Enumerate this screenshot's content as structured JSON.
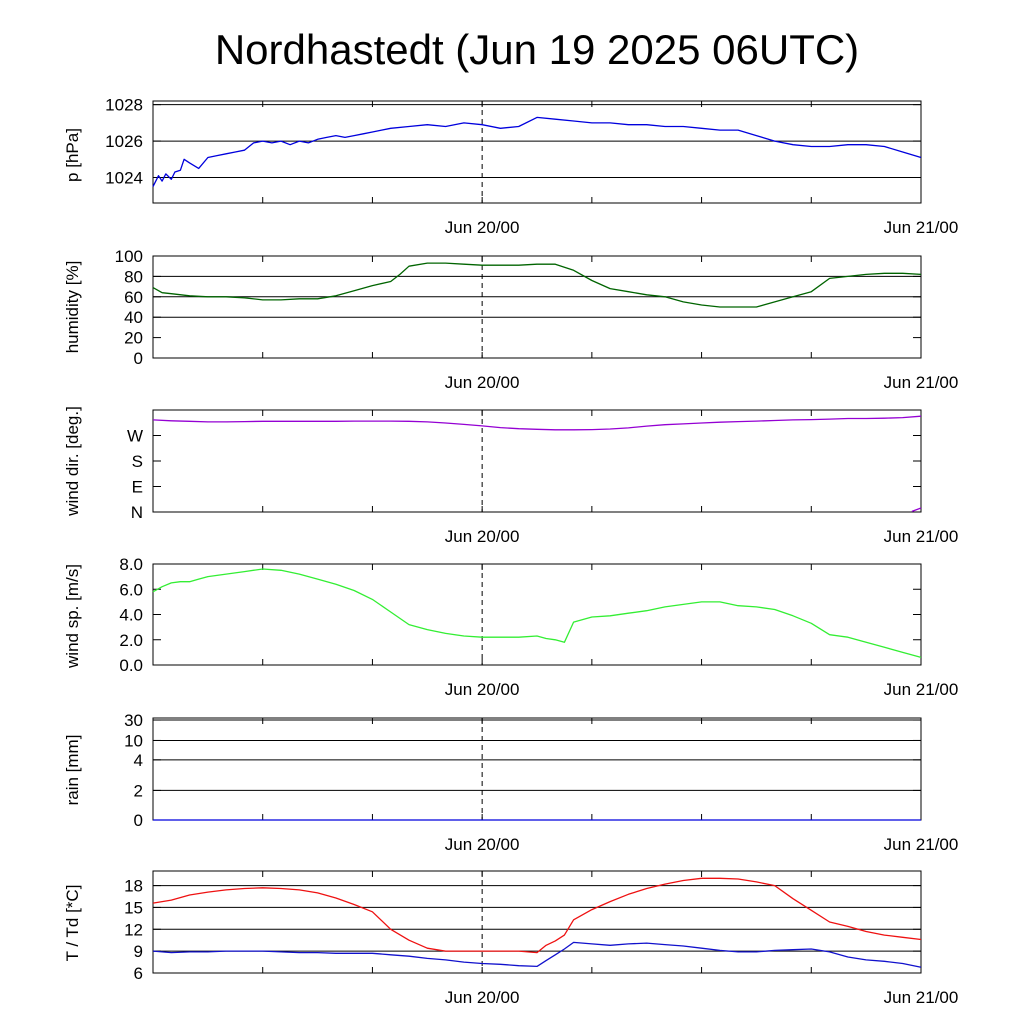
{
  "title": "Nordhastedt (Jun 19 2025 06UTC)",
  "colors": {
    "pressure": "#0000dd",
    "humidity": "#006400",
    "wind_dir": "#9400d3",
    "wind_speed": "#33ee33",
    "rain": "#0000dd",
    "temperature": "#ee1111",
    "dewpoint": "#1111cc"
  },
  "chart_data": [
    {
      "type": "line",
      "ylabel": "p [hPa]",
      "x_ticklabels": [
        "Jun 20/00",
        "Jun 21/00"
      ],
      "x_range_hours": [
        0,
        42
      ],
      "ylim": [
        1022.6,
        1028.2
      ],
      "yticks": [
        1024,
        1026,
        1028
      ],
      "ytick_labels": [
        "1024",
        "1026",
        "1028"
      ],
      "grid": [
        1024,
        1026,
        1028
      ],
      "series": [
        {
          "color_key": "pressure",
          "x": [
            0,
            0.3,
            0.5,
            0.7,
            1,
            1.2,
            1.5,
            1.7,
            2,
            2.5,
            3,
            3.5,
            4,
            4.5,
            5,
            5.5,
            6,
            6.5,
            7,
            7.5,
            8,
            8.5,
            9,
            9.5,
            10,
            10.5,
            11,
            11.5,
            12,
            12.5,
            13,
            14,
            15,
            16,
            17,
            18,
            19,
            20,
            21,
            22,
            23,
            24,
            25,
            26,
            27,
            28,
            29,
            30,
            31,
            32,
            33,
            34,
            35,
            36,
            37,
            38,
            39,
            40,
            41,
            42
          ],
          "y": [
            1023.5,
            1024.1,
            1023.8,
            1024.2,
            1023.9,
            1024.3,
            1024.4,
            1025.0,
            1024.8,
            1024.5,
            1025.1,
            1025.2,
            1025.3,
            1025.4,
            1025.5,
            1025.9,
            1026.0,
            1025.9,
            1026.0,
            1025.8,
            1026.0,
            1025.9,
            1026.1,
            1026.2,
            1026.3,
            1026.2,
            1026.3,
            1026.4,
            1026.5,
            1026.6,
            1026.7,
            1026.8,
            1026.9,
            1026.8,
            1027.0,
            1026.9,
            1026.7,
            1026.8,
            1027.3,
            1027.2,
            1027.1,
            1027.0,
            1027.0,
            1026.9,
            1026.9,
            1026.8,
            1026.8,
            1026.7,
            1026.6,
            1026.6,
            1026.3,
            1026.0,
            1025.8,
            1025.7,
            1025.7,
            1025.8,
            1025.8,
            1025.7,
            1025.4,
            1025.1
          ]
        }
      ]
    },
    {
      "type": "line",
      "ylabel": "humidity [%]",
      "x_ticklabels": [
        "Jun 20/00",
        "Jun 21/00"
      ],
      "x_range_hours": [
        0,
        42
      ],
      "ylim": [
        0,
        100
      ],
      "yticks": [
        0,
        20,
        40,
        60,
        80,
        100
      ],
      "ytick_labels": [
        "0",
        "20",
        "40",
        "60",
        "80",
        "100"
      ],
      "grid": [
        40,
        60,
        80
      ],
      "series": [
        {
          "color_key": "humidity",
          "x": [
            0,
            0.5,
            1,
            2,
            3,
            4,
            5,
            6,
            7,
            8,
            9,
            10,
            11,
            12,
            13,
            13.5,
            14,
            15,
            16,
            17,
            18,
            19,
            20,
            21,
            22,
            22.5,
            23,
            24,
            25,
            26,
            27,
            28,
            29,
            30,
            31,
            32,
            33,
            34,
            35,
            36,
            37,
            38,
            39,
            40,
            41,
            42
          ],
          "y": [
            69,
            64,
            63,
            61,
            60,
            60,
            59,
            57,
            57,
            58,
            58,
            61,
            66,
            71,
            75,
            82,
            90,
            93,
            93,
            92,
            91,
            91,
            91,
            92,
            92,
            89,
            86,
            76,
            68,
            65,
            62,
            60,
            55,
            52,
            50,
            50,
            50,
            55,
            60,
            65,
            78,
            80,
            82,
            83,
            83,
            82
          ]
        }
      ]
    },
    {
      "type": "line",
      "ylabel": "wind dir. [deg.]",
      "x_ticklabels": [
        "Jun 20/00",
        "Jun 21/00"
      ],
      "x_range_hours": [
        0,
        42
      ],
      "ylim": [
        0,
        360
      ],
      "yticks": [
        0,
        90,
        180,
        270
      ],
      "ytick_labels": [
        "N",
        "E",
        "S",
        "W"
      ],
      "grid": [],
      "series": [
        {
          "color_key": "wind_dir",
          "x": [
            0,
            1,
            2,
            3,
            4,
            5,
            6,
            7,
            8,
            9,
            10,
            11,
            12,
            13,
            14,
            15,
            16,
            17,
            18,
            19,
            20,
            21,
            22,
            23,
            24,
            25,
            26,
            27,
            28,
            29,
            30,
            31,
            32,
            33,
            34,
            35,
            36,
            37,
            38,
            39,
            40,
            41,
            42
          ],
          "y": [
            325,
            322,
            320,
            318,
            318,
            319,
            320,
            320,
            320,
            320,
            320,
            321,
            321,
            321,
            320,
            318,
            314,
            309,
            304,
            298,
            294,
            292,
            290,
            290,
            291,
            293,
            297,
            303,
            308,
            311,
            314,
            317,
            319,
            321,
            323,
            325,
            326,
            328,
            330,
            330,
            331,
            333,
            338
          ]
        },
        {
          "color_key": "wind_dir",
          "x": [
            41.5,
            42
          ],
          "y": [
            2,
            14
          ]
        }
      ]
    },
    {
      "type": "line",
      "ylabel": "wind sp. [m/s]",
      "x_ticklabels": [
        "Jun 20/00",
        "Jun 21/00"
      ],
      "x_range_hours": [
        0,
        42
      ],
      "ylim": [
        0,
        8.0
      ],
      "yticks": [
        0,
        2,
        4,
        6,
        8
      ],
      "ytick_labels": [
        "0.0",
        "2.0",
        "4.0",
        "6.0",
        "8.0"
      ],
      "grid": [],
      "series": [
        {
          "color_key": "wind_speed",
          "x": [
            0,
            0.5,
            1,
            1.5,
            2,
            2.5,
            3,
            3.5,
            4,
            5,
            6,
            7,
            8,
            9,
            10,
            11,
            12,
            13,
            14,
            15,
            16,
            17,
            18,
            19,
            20,
            21,
            21.5,
            22,
            22.5,
            23,
            24,
            25,
            26,
            27,
            28,
            29,
            30,
            31,
            32,
            33,
            34,
            35,
            36,
            37,
            38,
            39,
            40,
            41,
            42
          ],
          "y": [
            5.8,
            6.2,
            6.5,
            6.6,
            6.6,
            6.8,
            7.0,
            7.1,
            7.2,
            7.4,
            7.6,
            7.5,
            7.2,
            6.8,
            6.4,
            5.9,
            5.2,
            4.2,
            3.2,
            2.8,
            2.5,
            2.3,
            2.2,
            2.2,
            2.2,
            2.3,
            2.1,
            2.0,
            1.8,
            3.4,
            3.8,
            3.9,
            4.1,
            4.3,
            4.6,
            4.8,
            5.0,
            5.0,
            4.7,
            4.6,
            4.4,
            3.9,
            3.3,
            2.4,
            2.2,
            1.8,
            1.4,
            1.0,
            0.6
          ]
        }
      ]
    },
    {
      "type": "line",
      "ylabel": "rain [mm]",
      "x_ticklabels": [
        "Jun 20/00",
        "Jun 21/00"
      ],
      "x_range_hours": [
        0,
        42
      ],
      "ylim": [
        0,
        30
      ],
      "yticks": [
        0,
        2,
        4,
        10,
        30
      ],
      "ytick_labels": [
        "0",
        "2",
        "4",
        "10",
        "30"
      ],
      "grid": [
        2,
        4,
        10,
        30
      ],
      "series": [
        {
          "color_key": "rain",
          "x": [
            0,
            42
          ],
          "y": [
            0,
            0
          ]
        }
      ]
    },
    {
      "type": "line",
      "ylabel": "T / Td [*C]",
      "x_ticklabels": [
        "Jun 20/00",
        "Jun 21/00"
      ],
      "x_range_hours": [
        0,
        42
      ],
      "ylim": [
        6,
        20
      ],
      "yticks": [
        6,
        9,
        12,
        15,
        18
      ],
      "ytick_labels": [
        "6",
        "9",
        "12",
        "15",
        "18"
      ],
      "grid": [
        9,
        12,
        15,
        18
      ],
      "series": [
        {
          "name": "T",
          "color_key": "temperature",
          "x": [
            0,
            1,
            2,
            3,
            4,
            5,
            6,
            7,
            8,
            9,
            10,
            11,
            12,
            13,
            14,
            15,
            16,
            17,
            18,
            19,
            20,
            21,
            21.5,
            22,
            22.5,
            23,
            24,
            25,
            26,
            27,
            28,
            29,
            30,
            31,
            32,
            33,
            34,
            35,
            36,
            37,
            38,
            39,
            40,
            41,
            42
          ],
          "y": [
            15.6,
            16.0,
            16.7,
            17.1,
            17.4,
            17.6,
            17.7,
            17.6,
            17.4,
            17.0,
            16.3,
            15.4,
            14.4,
            12.0,
            10.5,
            9.4,
            9.0,
            9.0,
            9.0,
            9.0,
            9.0,
            8.8,
            9.8,
            10.4,
            11.2,
            13.3,
            14.7,
            15.8,
            16.8,
            17.6,
            18.2,
            18.7,
            19.0,
            19.0,
            18.9,
            18.5,
            18.0,
            16.2,
            14.6,
            13.0,
            12.4,
            11.7,
            11.2,
            10.9,
            10.6
          ]
        },
        {
          "name": "Td",
          "color_key": "dewpoint",
          "x": [
            0,
            1,
            2,
            3,
            4,
            5,
            6,
            7,
            8,
            9,
            10,
            11,
            12,
            13,
            14,
            15,
            16,
            17,
            18,
            19,
            20,
            21,
            21.5,
            22,
            22.5,
            23,
            24,
            25,
            26,
            27,
            28,
            29,
            30,
            31,
            32,
            33,
            34,
            35,
            36,
            37,
            38,
            39,
            40,
            41,
            42
          ],
          "y": [
            9.0,
            8.8,
            8.9,
            8.9,
            9.0,
            9.0,
            9.0,
            8.9,
            8.8,
            8.8,
            8.7,
            8.7,
            8.7,
            8.5,
            8.3,
            8.0,
            7.8,
            7.5,
            7.3,
            7.2,
            7.0,
            6.9,
            7.7,
            8.5,
            9.3,
            10.2,
            10.0,
            9.8,
            10.0,
            10.1,
            9.9,
            9.7,
            9.4,
            9.1,
            8.9,
            8.9,
            9.1,
            9.2,
            9.3,
            8.9,
            8.2,
            7.8,
            7.6,
            7.3,
            6.8
          ]
        }
      ]
    }
  ]
}
